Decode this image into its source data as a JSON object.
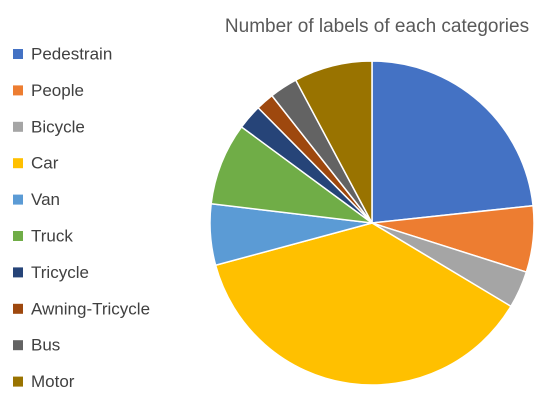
{
  "chart_data": {
    "type": "pie",
    "title": "Number of labels of each categories",
    "categories": [
      "Pedestrain",
      "People",
      "Bicycle",
      "Car",
      "Van",
      "Truck",
      "Tricycle",
      "Awning-Tricycle",
      "Bus",
      "Motor"
    ],
    "values": [
      23.3,
      6.6,
      3.7,
      37.2,
      6.1,
      8.2,
      2.5,
      1.8,
      2.8,
      7.8
    ],
    "colors": [
      "#4472c4",
      "#ed7d31",
      "#a5a5a5",
      "#ffc000",
      "#5b9bd5",
      "#70ad47",
      "#264478",
      "#9e480e",
      "#636363",
      "#997300"
    ],
    "legend": "left"
  }
}
